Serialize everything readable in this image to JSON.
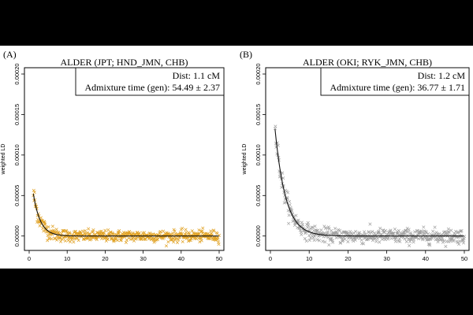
{
  "chart_data": [
    {
      "type": "scatter",
      "panel_label": "(A)",
      "title": "ALDER (JPT; HND_JMN, CHB)",
      "xlabel": "",
      "ylabel": "weighted LD",
      "xlim": [
        0,
        50
      ],
      "ylim": [
        -1e-05,
        0.0002
      ],
      "x_ticks": [
        0,
        10,
        20,
        30,
        40,
        50
      ],
      "y_ticks": [
        0.0,
        5e-05,
        0.0001,
        0.00015,
        0.0002
      ],
      "y_tick_labels": [
        "0.00000",
        "0.00005",
        "0.00010",
        "0.00015",
        "0.00020"
      ],
      "legend": {
        "dist": "Dist: 1.1 cM",
        "admixture": "Admixture time (gen): 54.49 ± 2.37"
      },
      "point_color": "#E0A020",
      "fit": {
        "model": "exponential",
        "amplitude": 9.5e-05,
        "rate": 0.545,
        "offset": 0.0,
        "x_start": 1.1,
        "x_end": 50
      },
      "points": {
        "x_start": 1.1,
        "x_end": 50,
        "step": 0.1,
        "noise_sd": 3.5e-06
      }
    },
    {
      "type": "scatter",
      "panel_label": "(B)",
      "title": "ALDER (OKI; RYK_JMN, CHB)",
      "xlabel": "",
      "ylabel": "weighted LD",
      "xlim": [
        0,
        50
      ],
      "ylim": [
        -1e-05,
        0.0002
      ],
      "x_ticks": [
        0,
        10,
        20,
        30,
        40,
        50
      ],
      "y_ticks": [
        0.0,
        5e-05,
        0.0001,
        0.00015,
        0.0002
      ],
      "y_tick_labels": [
        "0.00000",
        "0.00005",
        "0.00010",
        "0.00015",
        "0.00020"
      ],
      "legend": {
        "dist": "Dist: 1.2 cM",
        "admixture": "Admixture time (gen): 36.77 ± 1.71"
      },
      "point_color": "#A0A0A0",
      "fit": {
        "model": "exponential",
        "amplitude": 0.000205,
        "rate": 0.368,
        "offset": 0.0,
        "x_start": 1.2,
        "x_end": 50
      },
      "points": {
        "x_start": 1.2,
        "x_end": 50,
        "step": 0.1,
        "noise_sd": 4.5e-06
      }
    }
  ]
}
